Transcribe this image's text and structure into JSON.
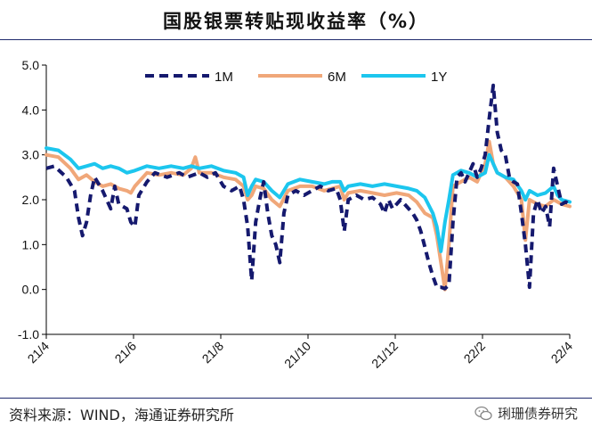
{
  "title": "国股银票转贴现收益率（%）",
  "source": "资料来源：WIND，海通证券研究所",
  "brand": "琍珊债券研究",
  "chart_data": {
    "type": "line",
    "title": "国股银票转贴现收益率（%）",
    "ylim": [
      -1.0,
      5.0
    ],
    "yticks": [
      "5.0",
      "4.0",
      "3.0",
      "2.0",
      "1.0",
      "0.0",
      "-1.0"
    ],
    "xticks": [
      "21/4",
      "21/6",
      "21/8",
      "21/10",
      "21/12",
      "22/2",
      "22/4"
    ],
    "legend_position": "top",
    "series": [
      {
        "name": "1M",
        "color": "#15196e",
        "style": "dashed",
        "points": [
          [
            0,
            2.7
          ],
          [
            2,
            2.75
          ],
          [
            5,
            2.5
          ],
          [
            7,
            2.2
          ],
          [
            8,
            1.6
          ],
          [
            9,
            1.2
          ],
          [
            10,
            1.5
          ],
          [
            11,
            2.1
          ],
          [
            12,
            2.5
          ],
          [
            14,
            2.2
          ],
          [
            16,
            1.8
          ],
          [
            17,
            2.3
          ],
          [
            18,
            1.9
          ],
          [
            20,
            1.8
          ],
          [
            21,
            1.5
          ],
          [
            22,
            1.4
          ],
          [
            23,
            2.1
          ],
          [
            25,
            2.4
          ],
          [
            27,
            2.6
          ],
          [
            30,
            2.5
          ],
          [
            33,
            2.6
          ],
          [
            35,
            2.5
          ],
          [
            38,
            2.6
          ],
          [
            40,
            2.5
          ],
          [
            42,
            2.6
          ],
          [
            44,
            2.3
          ],
          [
            46,
            2.2
          ],
          [
            48,
            2.3
          ],
          [
            49,
            2.0
          ],
          [
            50,
            1.4
          ],
          [
            51,
            0.2
          ],
          [
            52,
            1.5
          ],
          [
            53,
            2.0
          ],
          [
            54,
            2.4
          ],
          [
            55,
            1.7
          ],
          [
            56,
            1.2
          ],
          [
            57,
            1.0
          ],
          [
            58,
            0.6
          ],
          [
            59,
            1.7
          ],
          [
            60,
            2.1
          ],
          [
            62,
            2.2
          ],
          [
            64,
            2.1
          ],
          [
            66,
            2.2
          ],
          [
            68,
            2.3
          ],
          [
            70,
            2.2
          ],
          [
            72,
            2.25
          ],
          [
            73,
            2.0
          ],
          [
            74,
            1.3
          ],
          [
            75,
            2.0
          ],
          [
            77,
            2.1
          ],
          [
            79,
            2.0
          ],
          [
            81,
            2.05
          ],
          [
            83,
            1.9
          ],
          [
            84,
            1.7
          ],
          [
            85,
            2.0
          ],
          [
            86,
            1.8
          ],
          [
            88,
            2.0
          ],
          [
            90,
            1.8
          ],
          [
            91,
            1.7
          ],
          [
            92,
            1.55
          ],
          [
            93,
            1.3
          ],
          [
            94,
            0.95
          ],
          [
            95,
            0.6
          ],
          [
            96,
            0.3
          ],
          [
            97,
            0.05
          ],
          [
            98,
            0.05
          ],
          [
            99,
            0.02
          ],
          [
            100,
            0.1
          ],
          [
            101,
            1.5
          ],
          [
            102,
            2.5
          ],
          [
            103,
            2.6
          ],
          [
            104,
            2.4
          ],
          [
            105,
            2.6
          ],
          [
            106,
            2.8
          ],
          [
            107,
            2.5
          ],
          [
            108,
            2.7
          ],
          [
            109,
            3.0
          ],
          [
            110,
            3.8
          ],
          [
            111,
            4.55
          ],
          [
            112,
            3.5
          ],
          [
            113,
            3.1
          ],
          [
            114,
            3.0
          ],
          [
            115,
            2.5
          ],
          [
            116,
            2.4
          ],
          [
            117,
            2.35
          ],
          [
            118,
            1.7
          ],
          [
            119,
            1.0
          ],
          [
            120,
            0.05
          ],
          [
            121,
            1.7
          ],
          [
            122,
            2.0
          ],
          [
            123,
            1.7
          ],
          [
            124,
            1.85
          ],
          [
            125,
            1.4
          ],
          [
            126,
            2.7
          ],
          [
            127,
            2.3
          ],
          [
            128,
            1.9
          ],
          [
            129,
            1.95
          ],
          [
            130,
            1.9
          ]
        ]
      },
      {
        "name": "6M",
        "color": "#f0a779",
        "style": "solid",
        "points": [
          [
            0,
            3.0
          ],
          [
            3,
            2.95
          ],
          [
            6,
            2.7
          ],
          [
            8,
            2.45
          ],
          [
            10,
            2.55
          ],
          [
            12,
            2.4
          ],
          [
            14,
            2.3
          ],
          [
            16,
            2.35
          ],
          [
            18,
            2.25
          ],
          [
            20,
            2.2
          ],
          [
            21,
            2.15
          ],
          [
            22,
            2.3
          ],
          [
            25,
            2.6
          ],
          [
            28,
            2.55
          ],
          [
            31,
            2.6
          ],
          [
            34,
            2.55
          ],
          [
            36,
            2.7
          ],
          [
            37,
            2.95
          ],
          [
            38,
            2.6
          ],
          [
            41,
            2.6
          ],
          [
            44,
            2.5
          ],
          [
            47,
            2.45
          ],
          [
            49,
            2.3
          ],
          [
            50,
            2.0
          ],
          [
            51,
            2.1
          ],
          [
            52,
            2.3
          ],
          [
            54,
            2.25
          ],
          [
            56,
            2.0
          ],
          [
            58,
            1.85
          ],
          [
            60,
            2.2
          ],
          [
            63,
            2.3
          ],
          [
            66,
            2.3
          ],
          [
            69,
            2.2
          ],
          [
            71,
            2.25
          ],
          [
            73,
            2.3
          ],
          [
            74,
            2.0
          ],
          [
            75,
            2.15
          ],
          [
            78,
            2.2
          ],
          [
            81,
            2.15
          ],
          [
            84,
            2.1
          ],
          [
            87,
            2.15
          ],
          [
            90,
            2.1
          ],
          [
            92,
            1.95
          ],
          [
            94,
            1.7
          ],
          [
            96,
            1.6
          ],
          [
            97,
            1.2
          ],
          [
            98,
            0.6
          ],
          [
            99,
            0.0
          ],
          [
            100,
            1.0
          ],
          [
            101,
            2.3
          ],
          [
            103,
            2.4
          ],
          [
            105,
            2.5
          ],
          [
            107,
            2.4
          ],
          [
            109,
            2.8
          ],
          [
            110,
            3.3
          ],
          [
            111,
            2.8
          ],
          [
            112,
            2.6
          ],
          [
            114,
            2.5
          ],
          [
            116,
            2.3
          ],
          [
            118,
            2.0
          ],
          [
            119,
            1.1
          ],
          [
            120,
            2.0
          ],
          [
            122,
            1.9
          ],
          [
            124,
            1.85
          ],
          [
            126,
            2.0
          ],
          [
            128,
            1.9
          ],
          [
            130,
            1.85
          ]
        ]
      },
      {
        "name": "1Y",
        "color": "#1cc6ee",
        "style": "solid",
        "points": [
          [
            0,
            3.15
          ],
          [
            3,
            3.1
          ],
          [
            6,
            2.9
          ],
          [
            8,
            2.7
          ],
          [
            10,
            2.75
          ],
          [
            12,
            2.8
          ],
          [
            14,
            2.7
          ],
          [
            16,
            2.75
          ],
          [
            18,
            2.7
          ],
          [
            20,
            2.6
          ],
          [
            22,
            2.65
          ],
          [
            25,
            2.75
          ],
          [
            28,
            2.7
          ],
          [
            31,
            2.75
          ],
          [
            34,
            2.7
          ],
          [
            36,
            2.75
          ],
          [
            38,
            2.7
          ],
          [
            41,
            2.75
          ],
          [
            44,
            2.65
          ],
          [
            47,
            2.6
          ],
          [
            49,
            2.5
          ],
          [
            50,
            2.1
          ],
          [
            51,
            2.3
          ],
          [
            52,
            2.45
          ],
          [
            54,
            2.4
          ],
          [
            56,
            2.2
          ],
          [
            58,
            2.05
          ],
          [
            60,
            2.35
          ],
          [
            63,
            2.45
          ],
          [
            66,
            2.4
          ],
          [
            69,
            2.35
          ],
          [
            71,
            2.4
          ],
          [
            73,
            2.4
          ],
          [
            74,
            2.2
          ],
          [
            75,
            2.3
          ],
          [
            78,
            2.35
          ],
          [
            81,
            2.3
          ],
          [
            84,
            2.35
          ],
          [
            87,
            2.3
          ],
          [
            90,
            2.25
          ],
          [
            92,
            2.2
          ],
          [
            94,
            2.05
          ],
          [
            96,
            1.7
          ],
          [
            97,
            1.4
          ],
          [
            98,
            0.85
          ],
          [
            99,
            1.5
          ],
          [
            100,
            2.0
          ],
          [
            101,
            2.55
          ],
          [
            103,
            2.65
          ],
          [
            105,
            2.6
          ],
          [
            107,
            2.5
          ],
          [
            109,
            2.6
          ],
          [
            110,
            3.0
          ],
          [
            111,
            2.8
          ],
          [
            112,
            2.6
          ],
          [
            114,
            2.5
          ],
          [
            116,
            2.45
          ],
          [
            118,
            2.2
          ],
          [
            119,
            2.0
          ],
          [
            120,
            2.2
          ],
          [
            122,
            2.1
          ],
          [
            124,
            2.15
          ],
          [
            126,
            2.3
          ],
          [
            127,
            2.1
          ],
          [
            128,
            2.0
          ],
          [
            130,
            1.95
          ]
        ]
      }
    ]
  }
}
